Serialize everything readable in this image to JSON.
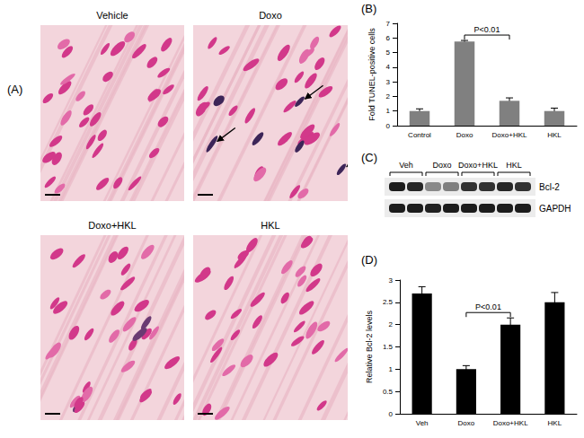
{
  "panel_labels": {
    "A": "(A)",
    "B": "(B)",
    "C": "(C)",
    "D": "(D)"
  },
  "micrographs": [
    "Vehicle",
    "Doxo",
    "Doxo+HKL",
    "HKL"
  ],
  "blot": {
    "lanes": [
      "Veh",
      "Doxo",
      "Doxo+HKL",
      "HKL"
    ],
    "bands": [
      "Bcl-2",
      "GAPDH"
    ]
  },
  "chart_data": [
    {
      "type": "bar",
      "categories": [
        "Control",
        "Doxo",
        "Doxo+HKL",
        "HKL"
      ],
      "values": [
        1.0,
        5.75,
        1.7,
        1.0
      ],
      "errors": [
        0.15,
        0.08,
        0.2,
        0.2
      ],
      "color": "#808080",
      "ylabel": "Fold TUNEL-positive cells",
      "ylim": [
        0,
        7
      ],
      "yticks": [
        0,
        1,
        2,
        3,
        4,
        5,
        6,
        7
      ],
      "annotations": [
        {
          "text": "P<0.01",
          "between": [
            "Doxo",
            "Doxo+HKL"
          ]
        }
      ]
    },
    {
      "type": "bar",
      "categories": [
        "Veh",
        "Doxo",
        "Doxo+HKL",
        "HKL"
      ],
      "values": [
        2.7,
        1.0,
        2.0,
        2.5
      ],
      "errors": [
        0.15,
        0.08,
        0.15,
        0.22
      ],
      "color": "#000000",
      "ylabel": "Relative Bcl-2 levels",
      "ylim": [
        0,
        3
      ],
      "yticks": [
        0,
        0.5,
        1,
        1.5,
        2,
        2.5,
        3
      ],
      "annotations": [
        {
          "text": "P<0.01",
          "between": [
            "Doxo",
            "Doxo+HKL"
          ]
        }
      ]
    }
  ]
}
